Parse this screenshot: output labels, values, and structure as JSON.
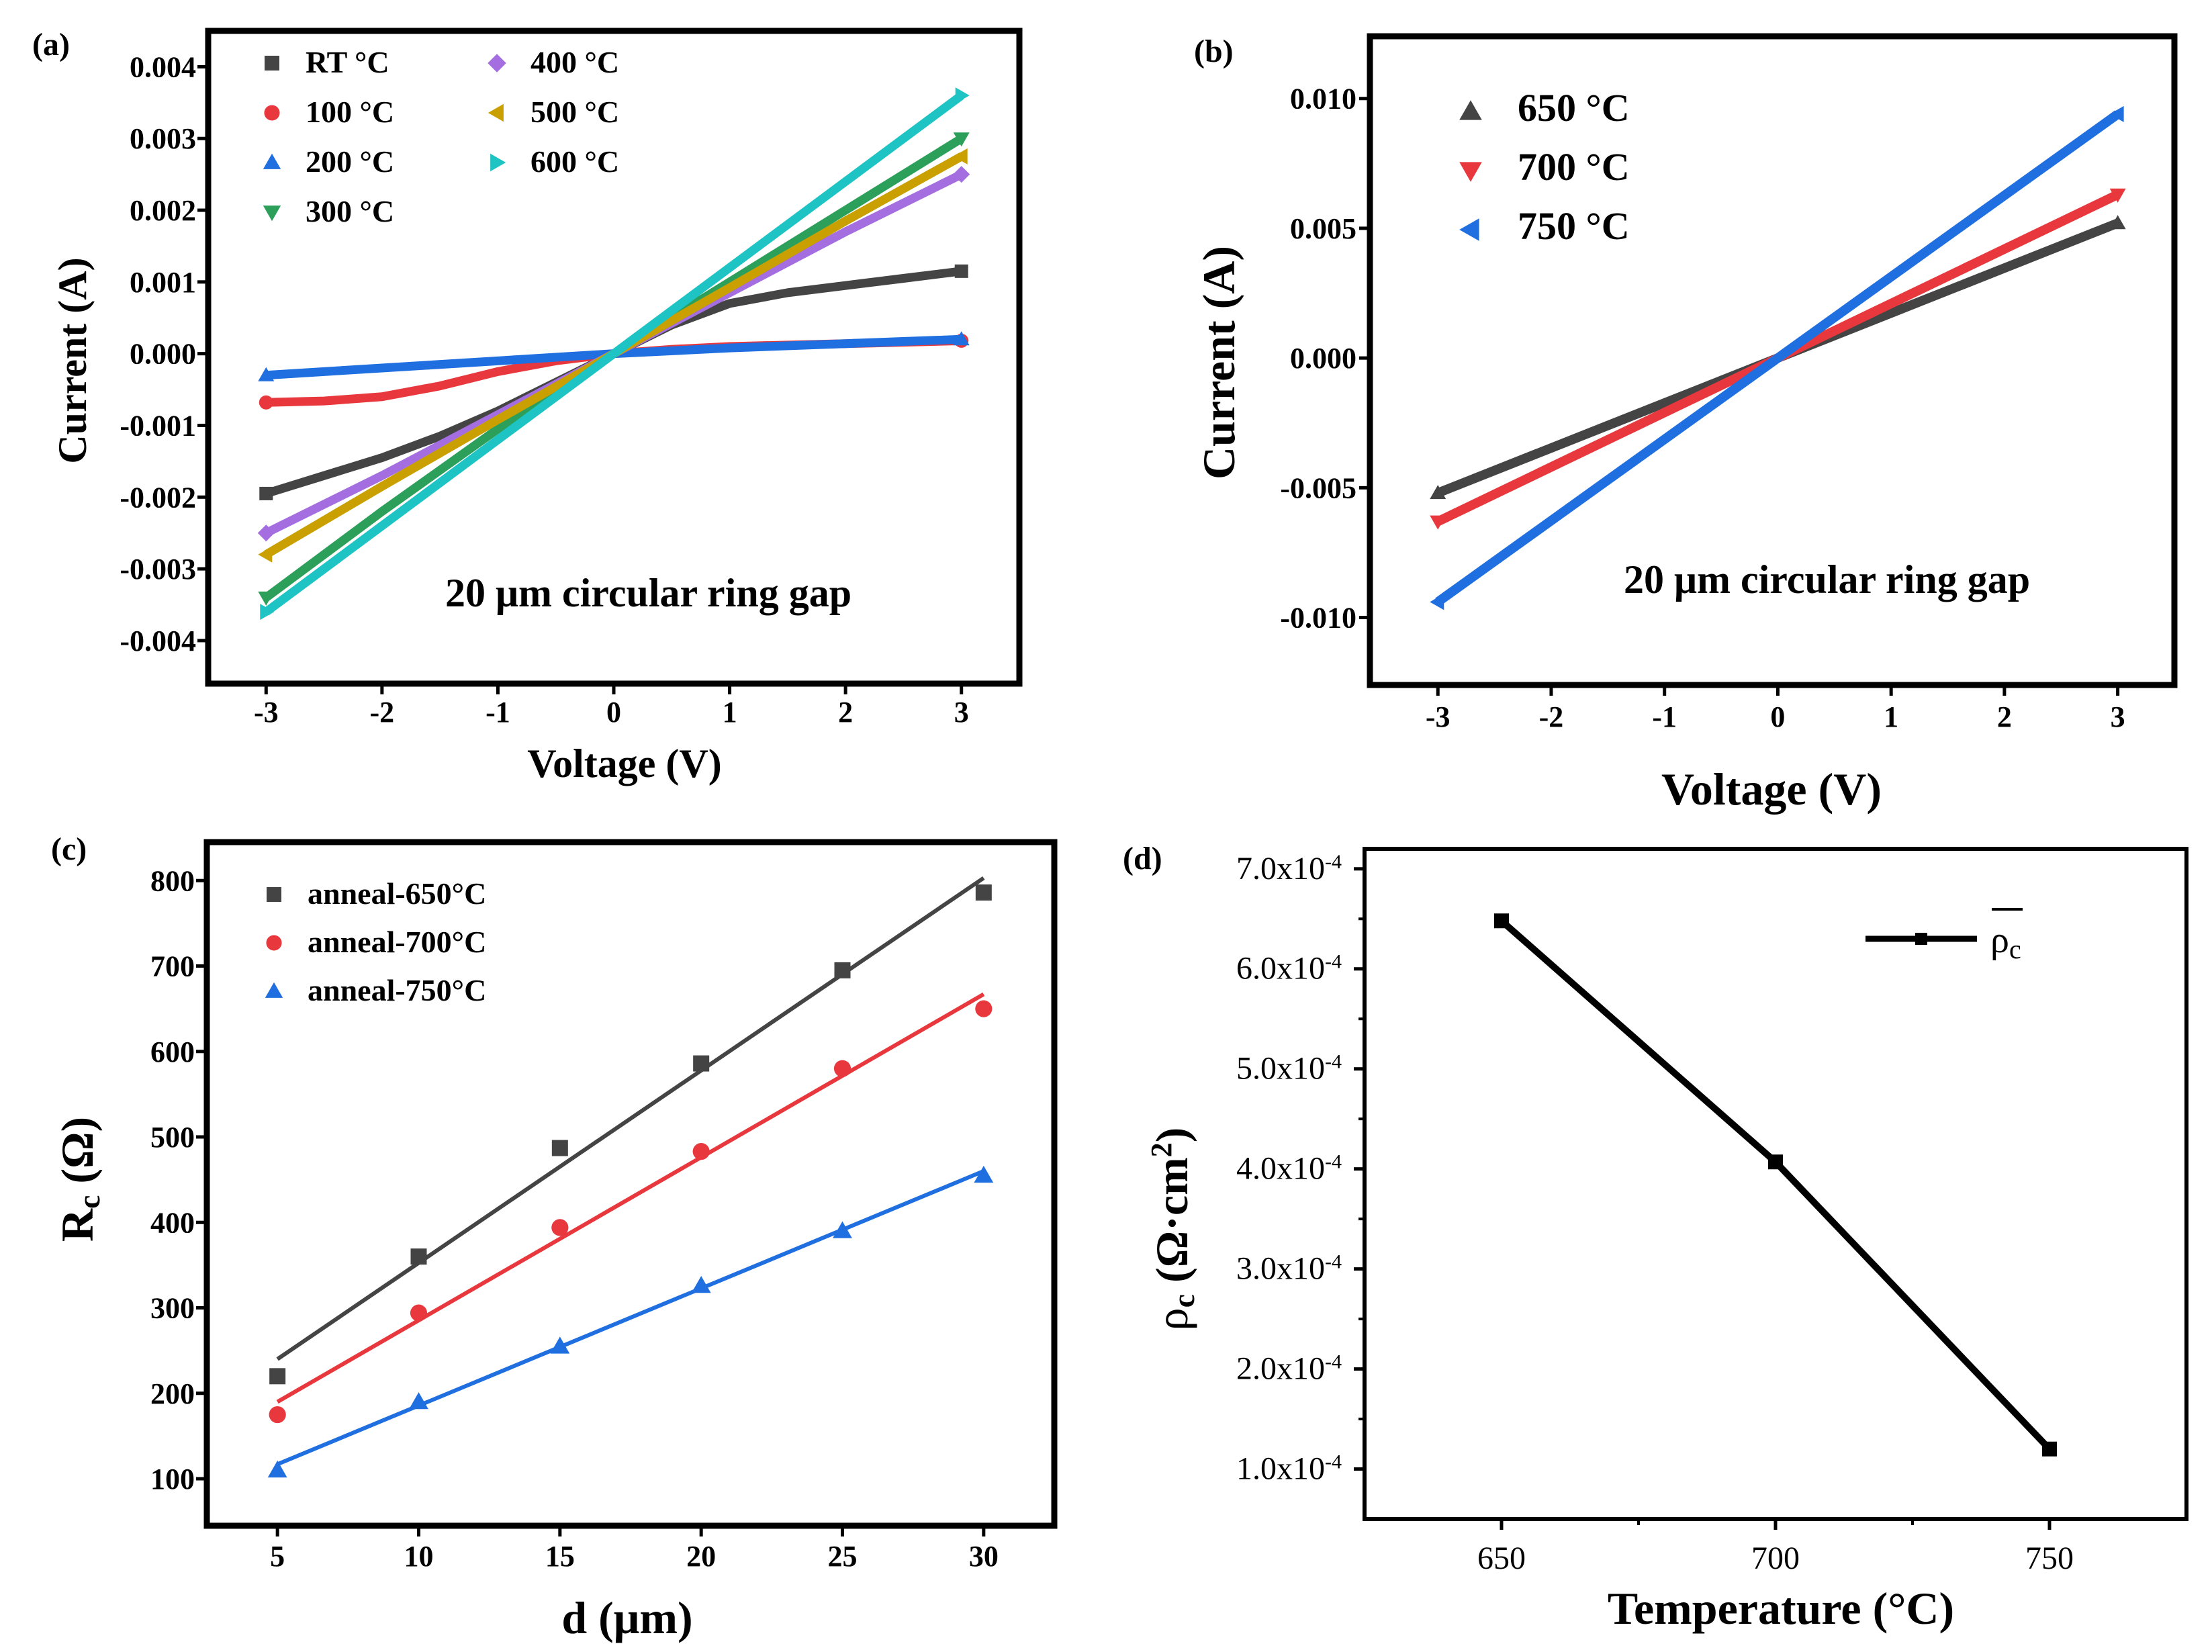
{
  "panels": {
    "a": {
      "label": "(a)",
      "xlabel": "Voltage (V)",
      "ylabel": "Current (A)",
      "annotation": "20 μm circular ring gap"
    },
    "b": {
      "label": "(b)",
      "xlabel": "Voltage (V)",
      "ylabel": "Current (A)",
      "annotation": "20 μm circular ring gap"
    },
    "c": {
      "label": "(c)",
      "xlabel": "d (μm)",
      "ylabel_main": "R",
      "ylabel_sub": "c",
      "ylabel_rest": " (Ω)"
    },
    "d": {
      "label": "(d)",
      "xlabel": "Temperature (°C)",
      "ylabel_main": "ρ",
      "ylabel_sub": "c",
      "ylabel_rest": " (Ω·cm",
      "ylabel_sup": "2",
      "ylabel_end": ")"
    }
  },
  "chart_data": [
    {
      "panel": "a",
      "type": "line",
      "xlabel": "Voltage (V)",
      "ylabel": "Current (A)",
      "xlim": [
        -3.5,
        3.5
      ],
      "ylim": [
        -0.0046,
        0.0045
      ],
      "xticks": [
        -3,
        -2,
        -1,
        0,
        1,
        2,
        3
      ],
      "xtick_labels": [
        "-3",
        "-2",
        "-1",
        "0",
        "1",
        "2",
        "3"
      ],
      "yticks": [
        -0.004,
        -0.003,
        -0.002,
        -0.001,
        0,
        0.001,
        0.002,
        0.003,
        0.004
      ],
      "ytick_labels": [
        "-0.004",
        "-0.003",
        "-0.002",
        "-0.001",
        "0.000",
        "0.001",
        "0.002",
        "0.003",
        "0.004"
      ],
      "series": [
        {
          "name": "RT °C",
          "color": "#444444",
          "marker": "square",
          "x": [
            -3,
            -2.5,
            -2,
            -1.5,
            -1,
            -0.5,
            0,
            0.5,
            1,
            1.5,
            2,
            2.5,
            3
          ],
          "y": [
            -0.00195,
            -0.0017,
            -0.00145,
            -0.00115,
            -0.0008,
            -0.0004,
            0,
            0.0004,
            0.0007,
            0.00085,
            0.00095,
            0.00105,
            0.00115
          ]
        },
        {
          "name": "100 °C",
          "color": "#e8383d",
          "marker": "circle",
          "x": [
            -3,
            -2.5,
            -2,
            -1.5,
            -1,
            -0.5,
            0,
            0.5,
            1,
            1.5,
            2,
            2.5,
            3
          ],
          "y": [
            -0.00068,
            -0.00066,
            -0.0006,
            -0.00045,
            -0.00025,
            -0.0001,
            0,
            6e-05,
            0.0001,
            0.00012,
            0.00014,
            0.00016,
            0.00018
          ]
        },
        {
          "name": "200 °C",
          "color": "#1f6fe0",
          "marker": "triangle-up",
          "x": [
            -3,
            -2,
            -1,
            0,
            1,
            2,
            3
          ],
          "y": [
            -0.0003,
            -0.0002,
            -0.0001,
            0,
            8e-05,
            0.00014,
            0.0002
          ]
        },
        {
          "name": "300 °C",
          "color": "#2ca05a",
          "marker": "triangle-down",
          "x": [
            -3,
            -2,
            -1,
            0,
            1,
            2,
            3
          ],
          "y": [
            -0.0034,
            -0.0022,
            -0.00105,
            0,
            0.001,
            0.002,
            0.003
          ]
        },
        {
          "name": "400 °C",
          "color": "#a46ee0",
          "marker": "diamond",
          "x": [
            -3,
            -2,
            -1,
            0,
            1,
            2,
            3
          ],
          "y": [
            -0.0025,
            -0.0017,
            -0.00085,
            0,
            0.00085,
            0.0017,
            0.0025
          ]
        },
        {
          "name": "500 °C",
          "color": "#c9a000",
          "marker": "triangle-left",
          "x": [
            -3,
            -2,
            -1,
            0,
            1,
            2,
            3
          ],
          "y": [
            -0.0028,
            -0.00185,
            -0.00092,
            0,
            0.00092,
            0.00185,
            0.00275
          ]
        },
        {
          "name": "600 °C",
          "color": "#1ec3c3",
          "marker": "triangle-right",
          "x": [
            -3,
            -2,
            -1,
            0,
            1,
            2,
            3
          ],
          "y": [
            -0.0036,
            -0.0024,
            -0.0012,
            0,
            0.0012,
            0.0024,
            0.0036
          ]
        }
      ]
    },
    {
      "panel": "b",
      "type": "line",
      "xlabel": "Voltage (V)",
      "ylabel": "Current (A)",
      "xlim": [
        -3.6,
        3.5
      ],
      "ylim": [
        -0.0126,
        0.0124
      ],
      "xticks": [
        -3,
        -2,
        -1,
        0,
        1,
        2,
        3
      ],
      "xtick_labels": [
        "-3",
        "-2",
        "-1",
        "0",
        "1",
        "2",
        "3"
      ],
      "yticks": [
        -0.01,
        -0.005,
        0,
        0.005,
        0.01
      ],
      "ytick_labels": [
        "-0.010",
        "-0.005",
        "0.000",
        "0.005",
        "0.010"
      ],
      "series": [
        {
          "name": "650 °C",
          "color": "#444444",
          "marker": "triangle-up",
          "x": [
            -3,
            0,
            3
          ],
          "y": [
            -0.0052,
            0,
            0.0052
          ]
        },
        {
          "name": "700 °C",
          "color": "#e8383d",
          "marker": "triangle-down",
          "x": [
            -3,
            0,
            3
          ],
          "y": [
            -0.0063,
            0,
            0.0063
          ]
        },
        {
          "name": "750 °C",
          "color": "#1f6fe0",
          "marker": "triangle-left",
          "x": [
            -3,
            0,
            3
          ],
          "y": [
            -0.0094,
            0,
            0.0094
          ]
        }
      ]
    },
    {
      "panel": "c",
      "type": "scatter",
      "xlabel": "d (μm)",
      "ylabel": "Rc (Ω)",
      "xlim": [
        2.5,
        32.5
      ],
      "ylim": [
        45,
        845
      ],
      "xticks": [
        5,
        10,
        15,
        20,
        25,
        30
      ],
      "xtick_labels": [
        "5",
        "10",
        "15",
        "20",
        "25",
        "30"
      ],
      "yticks": [
        100,
        200,
        300,
        400,
        500,
        600,
        700,
        800
      ],
      "ytick_labels": [
        "100",
        "200",
        "300",
        "400",
        "500",
        "600",
        "700",
        "800"
      ],
      "series": [
        {
          "name": "anneal-650°C",
          "color": "#444444",
          "marker": "square",
          "x": [
            5,
            10,
            15,
            20,
            25,
            30
          ],
          "y": [
            220,
            360,
            487,
            586,
            695,
            786
          ],
          "fit": {
            "x": [
              5,
              30
            ],
            "y": [
              240,
              803
            ]
          }
        },
        {
          "name": "anneal-700°C",
          "color": "#e8383d",
          "marker": "circle",
          "x": [
            5,
            10,
            15,
            20,
            25,
            30
          ],
          "y": [
            175,
            294,
            394,
            483,
            580,
            650
          ],
          "fit": {
            "x": [
              5,
              30
            ],
            "y": [
              190,
              667
            ]
          }
        },
        {
          "name": "anneal-750°C",
          "color": "#1f6fe0",
          "marker": "triangle-up",
          "x": [
            5,
            10,
            15,
            20,
            25,
            30
          ],
          "y": [
            110,
            190,
            255,
            326,
            390,
            455
          ],
          "fit": {
            "x": [
              5,
              30
            ],
            "y": [
              117,
              460
            ]
          }
        }
      ]
    },
    {
      "panel": "d",
      "type": "line",
      "xlabel": "Temperature (°C)",
      "ylabel": "ρc (Ω·cm²)",
      "xlim": [
        625,
        775
      ],
      "ylim": [
        5e-05,
        0.00072
      ],
      "xticks": [
        650,
        700,
        750
      ],
      "xtick_labels": [
        "650",
        "700",
        "750"
      ],
      "yticks": [
        0.0001,
        0.0002,
        0.0003,
        0.0004,
        0.0005,
        0.0006,
        0.0007
      ],
      "ytick_labels": [
        "1.0x10",
        "2.0x10",
        "3.0x10",
        "4.0x10",
        "5.0x10",
        "6.0x10",
        "7.0x10"
      ],
      "ytick_exponent": "-4",
      "series": [
        {
          "name": "ρ",
          "name_sub": "c",
          "color": "#000000",
          "marker": "square",
          "x": [
            650,
            700,
            750
          ],
          "y": [
            0.000648,
            0.000407,
            0.00012
          ]
        }
      ]
    }
  ]
}
